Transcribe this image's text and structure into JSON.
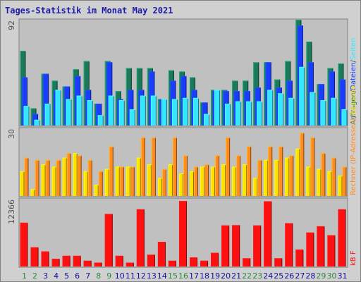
{
  "title": "Tages-Statistik im Monat May 2021",
  "colors": {
    "background": "#d0d0d0",
    "panel": "#c0c0c0",
    "anfragen": "#1b7a5a",
    "dateien": "#1a3cff",
    "seiten": "#35e6ff",
    "rechner": "#ffe000",
    "besuche": "#ff8a1f",
    "kb": "#ff1010",
    "weekday_tick": "#2a8a40",
    "day_tick": "#1010a0"
  },
  "chart_data": [
    {
      "type": "bar",
      "panel": "requests",
      "categories": [
        "1",
        "2",
        "3",
        "4",
        "5",
        "6",
        "7",
        "8",
        "9",
        "10",
        "11",
        "12",
        "13",
        "14",
        "15",
        "16",
        "17",
        "18",
        "19",
        "20",
        "21",
        "22",
        "23",
        "24",
        "25",
        "26",
        "27",
        "28",
        "29",
        "30",
        "31"
      ],
      "weekend_days": [
        "1",
        "2",
        "8",
        "9",
        "15",
        "16",
        "22",
        "23",
        "29",
        "30"
      ],
      "ymax_label": "92",
      "ylim": [
        0,
        92
      ],
      "legend": [
        {
          "text": "Anfragen",
          "color": "#1b7a5a"
        },
        {
          "text": "/",
          "color": "#505050"
        },
        {
          "text": "Dateien",
          "color": "#1a3cff"
        },
        {
          "text": "/",
          "color": "#505050"
        },
        {
          "text": "Seiten",
          "color": "#35e6ff"
        }
      ],
      "series": [
        {
          "name": "Anfragen",
          "color": "#1b7a5a",
          "values": [
            65,
            15,
            45,
            39,
            34,
            49,
            56,
            19,
            56,
            30,
            50,
            50,
            50,
            23,
            48,
            47,
            42,
            20,
            31,
            31,
            39,
            39,
            55,
            55,
            40,
            56,
            92,
            73,
            36,
            50,
            54
          ]
        },
        {
          "name": "Dateien",
          "color": "#1a3cff",
          "values": [
            42,
            10,
            45,
            30,
            34,
            43,
            31,
            19,
            55,
            23,
            31,
            31,
            47,
            23,
            39,
            43,
            31,
            20,
            30,
            30,
            30,
            30,
            33,
            55,
            33,
            39,
            87,
            55,
            36,
            47,
            40
          ]
        },
        {
          "name": "Seiten",
          "color": "#35e6ff",
          "values": [
            17,
            5,
            19,
            31,
            23,
            26,
            22,
            9,
            26,
            22,
            14,
            26,
            26,
            23,
            23,
            24,
            24,
            10,
            31,
            19,
            21,
            21,
            21,
            31,
            28,
            24,
            51,
            29,
            22,
            24,
            14
          ]
        }
      ]
    },
    {
      "type": "bar",
      "panel": "visitors",
      "categories": [
        "1",
        "2",
        "3",
        "4",
        "5",
        "6",
        "7",
        "8",
        "9",
        "10",
        "11",
        "12",
        "13",
        "14",
        "15",
        "16",
        "17",
        "18",
        "19",
        "20",
        "21",
        "22",
        "23",
        "24",
        "25",
        "26",
        "27",
        "28",
        "29",
        "30",
        "31"
      ],
      "ymax_label": "30",
      "ylim": [
        0,
        30
      ],
      "legend": [
        {
          "text": "Rechner (IP-Adressen)",
          "color": "#ff8a1f"
        },
        {
          "text": "/",
          "color": "#505050"
        },
        {
          "text": "Besuche",
          "color": "#ffe000"
        }
      ],
      "series": [
        {
          "name": "Rechner",
          "color": "#ffe000",
          "values": [
            11,
            3,
            14,
            13,
            17,
            19,
            11,
            5,
            12,
            13,
            13,
            17,
            14,
            8,
            14,
            10,
            11,
            13,
            13,
            14,
            13,
            14,
            8,
            16,
            16,
            17,
            21,
            13,
            12,
            11,
            9
          ]
        },
        {
          "name": "Besuche",
          "color": "#ff8a1f",
          "values": [
            17,
            16,
            16,
            16,
            19,
            18,
            16,
            11,
            22,
            13,
            13,
            26,
            26,
            12,
            26,
            18,
            13,
            14,
            18,
            26,
            18,
            22,
            16,
            22,
            22,
            18,
            28,
            26,
            19,
            17,
            13
          ]
        }
      ]
    },
    {
      "type": "bar",
      "panel": "kbytes",
      "categories": [
        "1",
        "2",
        "3",
        "4",
        "5",
        "6",
        "7",
        "8",
        "9",
        "10",
        "11",
        "12",
        "13",
        "14",
        "15",
        "16",
        "17",
        "18",
        "19",
        "20",
        "21",
        "22",
        "23",
        "24",
        "25",
        "26",
        "27",
        "28",
        "29",
        "30",
        "31"
      ],
      "ymax_label": "12366",
      "ylim": [
        0,
        12366
      ],
      "legend": [
        {
          "text": "kB F",
          "color": "#ff1010"
        }
      ],
      "series": [
        {
          "name": "kB F",
          "color": "#ff1010",
          "values": [
            8000,
            3500,
            2750,
            1400,
            1950,
            1950,
            1050,
            700,
            9600,
            1950,
            700,
            10450,
            2150,
            4500,
            1050,
            11950,
            1650,
            1050,
            2500,
            7500,
            7550,
            1500,
            7500,
            11900,
            1500,
            7900,
            3100,
            6200,
            7350,
            5700,
            10450
          ]
        }
      ]
    }
  ]
}
